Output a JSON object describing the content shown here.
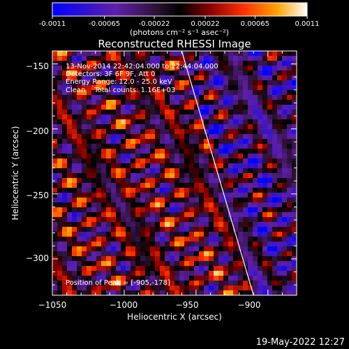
{
  "colorbar": {
    "tick_labels": [
      "-0.0011",
      "-0.00065",
      "-0.00022",
      "0.00022",
      "0.00065",
      "0.0011"
    ],
    "tick_values": [
      -0.0011,
      -0.00065,
      -0.00022,
      0.00022,
      0.00065,
      0.0011
    ],
    "range": [
      -0.0011,
      0.0011
    ],
    "unit_label": "(photons cm⁻² s⁻¹ asec⁻²)"
  },
  "title": "Reconstructed RHESSI Image",
  "info_lines": [
    "13-Nov-2014 22:42:04.000 to 22:44:04.000",
    "Detectors: 3F 6F 9F, Att 0",
    "Energy Range: 12.0 - 25.0 keV",
    "Clean    Total counts: 1.16E+03"
  ],
  "peak_label": "Position of Peak = [-905,-178]",
  "timestamp": "19-May-2022 12:27",
  "colors": {
    "background": "#000000",
    "text": "#ffffff",
    "colormap_stops": [
      "#0000ff",
      "#6020a8",
      "#2a1030",
      "#000000",
      "#8a0000",
      "#ff3000",
      "#ffa000",
      "#ffffff"
    ]
  },
  "chart_data": {
    "type": "heatmap",
    "title": "Reconstructed RHESSI Image",
    "xlabel": "Heliocentric X (arcsec)",
    "ylabel": "Heliocentric Y (arcsec)",
    "xlim": [
      -1050,
      -880
    ],
    "ylim": [
      -328,
      -140
    ],
    "x_ticks": [
      -1050,
      -1000,
      -950,
      -900
    ],
    "x_tick_labels": [
      "−1050",
      "−1000",
      "−950",
      "−900"
    ],
    "y_ticks": [
      -150,
      -200,
      -250,
      -300
    ],
    "y_tick_labels": [
      "−150",
      "−200",
      "−250",
      "−300"
    ],
    "value_range": [
      -0.0011,
      0.0011
    ],
    "solar_limb": [
      [
        -960,
        -140
      ],
      [
        -910,
        -328
      ]
    ],
    "peak_position": [
      -905,
      -178
    ],
    "grid": false
  }
}
